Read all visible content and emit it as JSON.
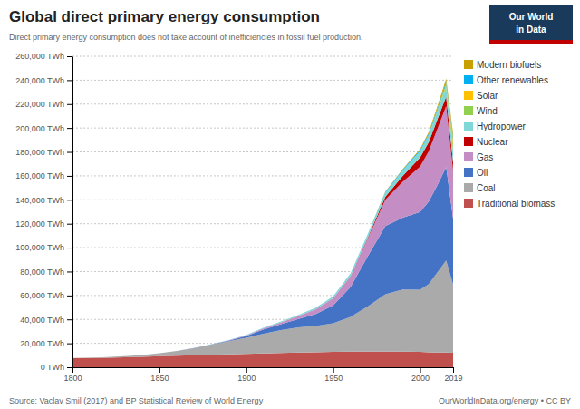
{
  "chart_data": {
    "type": "area",
    "stacked": true,
    "title": "Global direct primary energy consumption",
    "subtitle": "Direct primary energy consumption does not take account of inefficiencies in fossil fuel production.",
    "annotations": [
      "Source: Vaclav Smil (2017) and BP Statistical Review of World Energy",
      "OurWorldInData.org/energy • CC BY",
      "Our World",
      "in Data"
    ],
    "x": [
      1800,
      1810,
      1820,
      1830,
      1840,
      1850,
      1860,
      1870,
      1880,
      1890,
      1900,
      1910,
      1920,
      1930,
      1940,
      1950,
      1960,
      1970,
      1980,
      1990,
      2000,
      2005,
      2010,
      2015,
      2019
    ],
    "xlim": [
      1800,
      2019
    ],
    "xticks": [
      1800,
      1850,
      1900,
      1950,
      2000,
      2019
    ],
    "ylim": [
      0,
      260000
    ],
    "yticks": [
      {
        "value": 0,
        "label": "0 TWh"
      },
      {
        "value": 20000,
        "label": "20,000 TWh"
      },
      {
        "value": 40000,
        "label": "40,000 TWh"
      },
      {
        "value": 60000,
        "label": "60,000 TWh"
      },
      {
        "value": 80000,
        "label": "80,000 TWh"
      },
      {
        "value": 100000,
        "label": "100,000 TWh"
      },
      {
        "value": 120000,
        "label": "120,000 TWh"
      },
      {
        "value": 140000,
        "label": "140,000 TWh"
      },
      {
        "value": 160000,
        "label": "160,000 TWh"
      },
      {
        "value": 180000,
        "label": "180,000 TWh"
      },
      {
        "value": 200000,
        "label": "200,000 TWh"
      },
      {
        "value": 220000,
        "label": "220,000 TWh"
      },
      {
        "value": 240000,
        "label": "240,000 TWh"
      },
      {
        "value": 260000,
        "label": "260,000 TWh"
      }
    ],
    "grid": true,
    "legend": "right",
    "series": [
      {
        "name": "Traditional biomass",
        "color": "#c0504d",
        "values": [
          7500,
          7700,
          8000,
          8400,
          8800,
          9200,
          9600,
          10000,
          10400,
          10800,
          11200,
          11600,
          12000,
          12300,
          12500,
          12800,
          13000,
          13000,
          13000,
          13000,
          12800,
          12600,
          12400,
          12300,
          12200
        ]
      },
      {
        "name": "Coal",
        "color": "#aaaaaa",
        "values": [
          200,
          300,
          500,
          900,
          1500,
          2500,
          4000,
          6000,
          8500,
          11000,
          13500,
          16500,
          19000,
          21000,
          22000,
          24000,
          29000,
          38000,
          48000,
          52000,
          52000,
          57000,
          67000,
          77000,
          57000
        ]
      },
      {
        "name": "Oil",
        "color": "#4472c4",
        "values": [
          0,
          0,
          0,
          0,
          0,
          0,
          50,
          100,
          200,
          500,
          1500,
          3500,
          5000,
          7000,
          10000,
          15000,
          25000,
          42000,
          57000,
          60000,
          65000,
          69000,
          73000,
          78000,
          55000
        ]
      },
      {
        "name": "Gas",
        "color": "#c48dc4",
        "values": [
          0,
          0,
          0,
          0,
          0,
          0,
          0,
          50,
          100,
          300,
          600,
          1000,
          1500,
          2500,
          4000,
          6000,
          9000,
          15000,
          22000,
          30000,
          38000,
          42000,
          47000,
          51000,
          40000
        ]
      },
      {
        "name": "Nuclear",
        "color": "#c00000",
        "values": [
          0,
          0,
          0,
          0,
          0,
          0,
          0,
          0,
          0,
          0,
          0,
          0,
          0,
          0,
          0,
          0,
          200,
          800,
          2500,
          5000,
          7500,
          7500,
          8000,
          8000,
          7000
        ]
      },
      {
        "name": "Hydropower",
        "color": "#7fd7d7",
        "values": [
          0,
          0,
          0,
          0,
          0,
          0,
          0,
          50,
          100,
          200,
          300,
          500,
          700,
          1000,
          1300,
          1500,
          2000,
          2500,
          3500,
          4500,
          5500,
          6000,
          7000,
          8000,
          9500
        ]
      },
      {
        "name": "Wind",
        "color": "#92d050",
        "values": [
          0,
          0,
          0,
          0,
          0,
          0,
          0,
          0,
          0,
          0,
          0,
          0,
          0,
          0,
          0,
          0,
          0,
          0,
          0,
          10,
          50,
          200,
          700,
          2000,
          5500
        ]
      },
      {
        "name": "Solar",
        "color": "#ffc000",
        "values": [
          0,
          0,
          0,
          0,
          0,
          0,
          0,
          0,
          0,
          0,
          0,
          0,
          0,
          0,
          0,
          0,
          0,
          0,
          0,
          0,
          10,
          30,
          100,
          700,
          3500
        ]
      },
      {
        "name": "Other renewables",
        "color": "#00b0f0",
        "values": [
          0,
          0,
          0,
          0,
          0,
          0,
          0,
          0,
          0,
          0,
          0,
          0,
          0,
          0,
          0,
          100,
          200,
          300,
          500,
          700,
          900,
          1100,
          1400,
          1700,
          2200
        ]
      },
      {
        "name": "Modern biofuels",
        "color": "#c8a000",
        "values": [
          0,
          0,
          0,
          0,
          0,
          0,
          0,
          0,
          0,
          0,
          0,
          0,
          0,
          0,
          0,
          0,
          0,
          100,
          300,
          500,
          800,
          1200,
          1800,
          2500,
          3200
        ]
      }
    ]
  }
}
